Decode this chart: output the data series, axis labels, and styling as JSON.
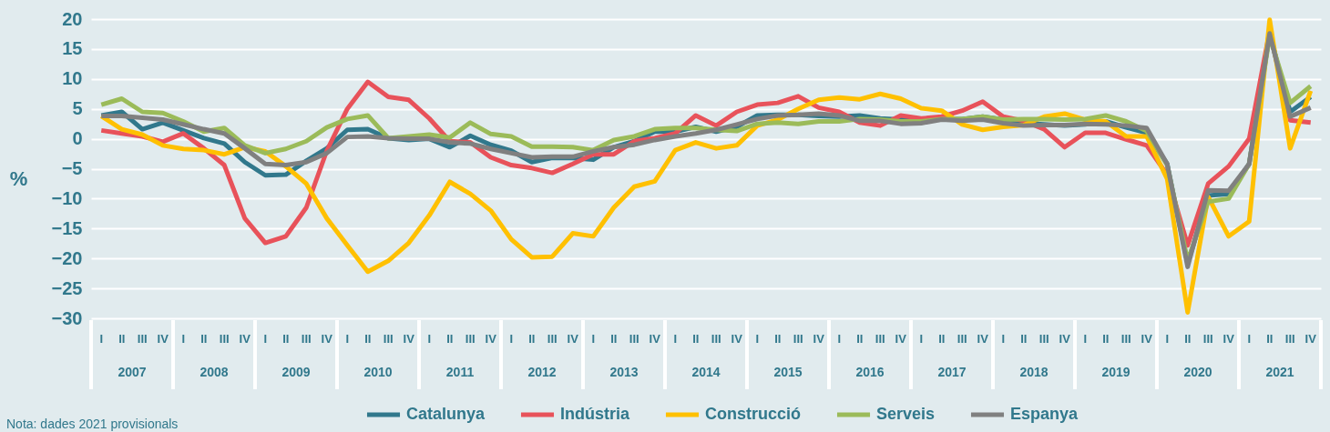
{
  "chart_data": {
    "type": "line",
    "ylabel": "%",
    "categories": [
      "I",
      "II",
      "III",
      "IV",
      "I",
      "II",
      "III",
      "IV",
      "I",
      "II",
      "III",
      "IV",
      "I",
      "II",
      "III",
      "IV",
      "I",
      "II",
      "III",
      "IV",
      "I",
      "II",
      "III",
      "IV",
      "I",
      "II",
      "III",
      "IV",
      "I",
      "II",
      "III",
      "IV",
      "I",
      "II",
      "III",
      "IV",
      "I",
      "II",
      "III",
      "IV",
      "I",
      "II",
      "III",
      "IV",
      "I",
      "II",
      "III",
      "IV",
      "I",
      "II",
      "III",
      "IV",
      "I",
      "II",
      "III",
      "IV",
      "I",
      "II",
      "III",
      "IV"
    ],
    "series": [
      {
        "name": "Catalunya",
        "color": "#31788c",
        "values": [
          3.9,
          4.5,
          1.6,
          2.7,
          1.4,
          0.1,
          -0.8,
          -3.9,
          -6.1,
          -6.0,
          -3.7,
          -1.6,
          1.5,
          1.6,
          0.1,
          -0.2,
          0.0,
          -1.4,
          0.5,
          -1.0,
          -2.0,
          -3.9,
          -3.2,
          -3.2,
          -3.5,
          -1.4,
          -0.4,
          1.2,
          1.2,
          2.0,
          1.2,
          2.0,
          3.9,
          4.0,
          4.0,
          3.8,
          3.7,
          3.9,
          3.4,
          3.2,
          3.2,
          3.3,
          3.3,
          3.7,
          3.2,
          2.6,
          2.4,
          2.2,
          2.4,
          2.9,
          1.9,
          1.0,
          -4.2,
          -20.9,
          -9.5,
          -9.2,
          -4.2,
          17.6,
          4.5,
          7.0
        ]
      },
      {
        "name": "Indústria",
        "color": "#e8525a",
        "values": [
          1.4,
          0.9,
          0.4,
          -0.5,
          0.9,
          -1.6,
          -4.4,
          -13.3,
          -17.4,
          -16.3,
          -11.5,
          -2.0,
          5.0,
          9.5,
          7.0,
          6.5,
          3.4,
          -0.4,
          -0.6,
          -3.1,
          -4.4,
          -4.9,
          -5.7,
          -4.2,
          -2.6,
          -2.6,
          -0.4,
          0.1,
          0.9,
          3.9,
          2.2,
          4.5,
          5.7,
          6.0,
          7.1,
          5.2,
          4.5,
          2.7,
          2.2,
          3.9,
          3.4,
          3.7,
          4.7,
          6.2,
          3.7,
          3.0,
          1.6,
          -1.4,
          1.0,
          1.0,
          -0.1,
          -1.1,
          -6.0,
          -17.8,
          -7.5,
          -4.6,
          0.0,
          18.0,
          3.1,
          2.7
        ]
      },
      {
        "name": "Construcció",
        "color": "#ffc000",
        "values": [
          3.8,
          1.6,
          0.7,
          -1.1,
          -1.7,
          -1.9,
          -2.6,
          -1.4,
          -2.1,
          -4.6,
          -7.5,
          -13.3,
          -17.8,
          -22.2,
          -20.4,
          -17.4,
          -12.8,
          -7.2,
          -9.2,
          -12.0,
          -16.8,
          -19.8,
          -19.7,
          -15.8,
          -16.3,
          -11.5,
          -8.0,
          -7.1,
          -1.9,
          -0.6,
          -1.6,
          -1.1,
          2.2,
          3.2,
          5.0,
          6.5,
          6.9,
          6.6,
          7.5,
          6.7,
          5.1,
          4.7,
          2.4,
          1.5,
          2.0,
          2.3,
          3.7,
          4.2,
          3.2,
          2.9,
          0.4,
          0.4,
          -6.7,
          -29.0,
          -9.7,
          -16.3,
          -13.8,
          19.9,
          -1.6,
          8.0
        ]
      },
      {
        "name": "Serveis",
        "color": "#9bbb59",
        "values": [
          5.7,
          6.7,
          4.5,
          4.3,
          2.9,
          1.2,
          1.8,
          -1.1,
          -2.4,
          -1.7,
          -0.4,
          1.9,
          3.3,
          3.9,
          0.1,
          0.4,
          0.7,
          0.2,
          2.7,
          0.8,
          0.4,
          -1.3,
          -1.3,
          -1.4,
          -1.9,
          -0.2,
          0.4,
          1.6,
          1.8,
          1.8,
          1.5,
          1.3,
          2.5,
          2.7,
          2.5,
          2.9,
          2.9,
          3.3,
          3.2,
          2.9,
          2.9,
          3.3,
          3.3,
          3.7,
          3.2,
          3.3,
          3.3,
          3.2,
          3.3,
          3.9,
          2.9,
          1.3,
          -4.4,
          -20.4,
          -10.5,
          -10.0,
          -4.2,
          17.1,
          6.0,
          8.8
        ]
      },
      {
        "name": "Espanya",
        "color": "#808080",
        "values": [
          3.8,
          3.8,
          3.5,
          3.2,
          2.4,
          1.6,
          0.9,
          -1.6,
          -4.2,
          -4.4,
          -3.9,
          -2.4,
          0.3,
          0.4,
          0.1,
          0.0,
          0.0,
          -0.6,
          -0.8,
          -1.7,
          -2.4,
          -3.1,
          -3.0,
          -3.0,
          -2.1,
          -1.4,
          -1.0,
          -0.2,
          0.4,
          0.9,
          1.5,
          2.4,
          3.3,
          3.9,
          4.0,
          4.2,
          3.9,
          3.0,
          3.0,
          2.5,
          2.6,
          3.2,
          3.0,
          3.2,
          2.6,
          2.2,
          2.3,
          2.3,
          2.5,
          2.4,
          2.2,
          1.8,
          -4.2,
          -21.4,
          -8.6,
          -8.7,
          -4.2,
          17.6,
          3.7,
          5.2
        ]
      }
    ],
    "ylim": [
      -30,
      20
    ],
    "yticks": [
      -30,
      -25,
      -20,
      -15,
      -10,
      -5,
      0,
      5,
      10,
      15,
      20
    ],
    "grid": "y",
    "legend": "bottom",
    "marker": "none",
    "line_style": "solid",
    "annotations": [
      "Nota: dades 2021 provisionals",
      "2007",
      "2008",
      "2009",
      "2010",
      "2011",
      "2012",
      "2013",
      "2014",
      "2015",
      "2016",
      "2017",
      "2018",
      "2019",
      "2020",
      "2021"
    ]
  }
}
